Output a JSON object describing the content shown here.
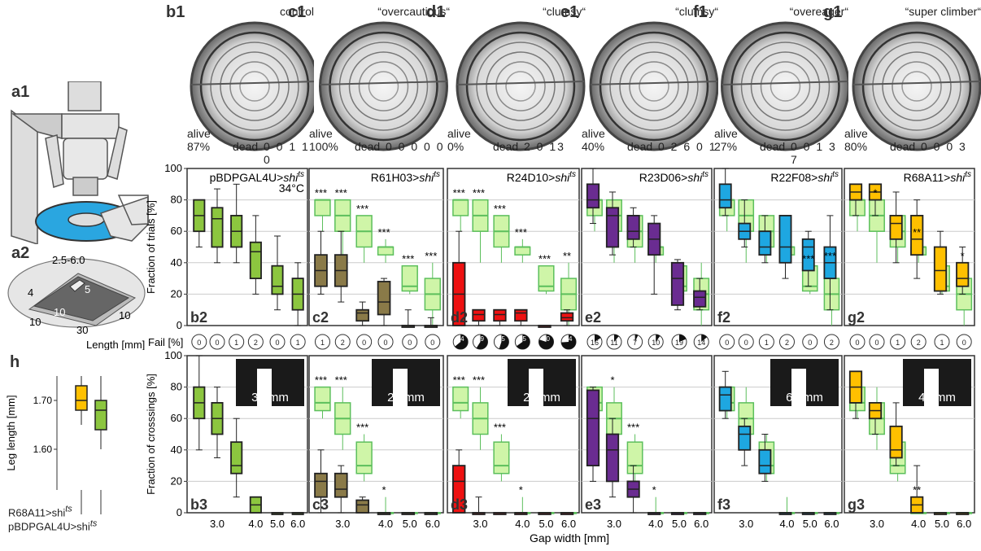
{
  "photos": [
    {
      "id": "b1",
      "tag": "control",
      "alive_label": "alive",
      "alive": "87%",
      "dead_label": "dead",
      "dead": "0 0 1 1 0"
    },
    {
      "id": "c1",
      "tag": "“overcautious“",
      "alive_label": "alive",
      "alive": "100%",
      "dead_label": "dead",
      "dead": "0 0 0 0 0"
    },
    {
      "id": "d1",
      "tag": "“clumsy“",
      "alive_label": "alive",
      "alive": "0%",
      "dead_label": "dead",
      "dead": "2 0 13"
    },
    {
      "id": "e1",
      "tag": "“clumsy“",
      "alive_label": "alive",
      "alive": "40%",
      "dead_label": "dead",
      "dead": "0 2 6 0 1"
    },
    {
      "id": "f1",
      "tag": "“overeager“",
      "alive_label": "alive",
      "alive": "27%",
      "dead_label": "dead",
      "dead": "0 0 1 3 7"
    },
    {
      "id": "g1",
      "tag": "“super climber“",
      "alive_label": "alive",
      "alive": "80%",
      "dead_label": "dead",
      "dead": "0 0 0 3"
    }
  ],
  "left": {
    "a1": "a1",
    "a2": "a2",
    "h": "h",
    "a2_range": "2.5-6.0",
    "a2_dims": [
      "4",
      "5",
      "10",
      "10",
      "30",
      "10"
    ],
    "a2_xlabel": "Length [mm]",
    "h_ylabel": "Leg length [mm]",
    "h_ticks": [
      "1.70",
      "1.60"
    ],
    "h_legend1": "R68A11>shi",
    "h_legend2": "pBDPGAL4U>shi",
    "h_legend_sup": "ts"
  },
  "colors": {
    "green": "#8cc63f",
    "olive": "#8a7a48",
    "red": "#ee1111",
    "purple": "#6a2c91",
    "blue": "#1ea7e1",
    "yellow": "#ffc000",
    "ctrl": "#cff5a8",
    "ctrl_edge": "#5cbf5c"
  },
  "chart_data": [
    {
      "type": "box",
      "title": "Fraction of trials",
      "ylabel": "Fraction of trials [%]",
      "ylim": [
        0,
        100
      ],
      "yticks": [
        0,
        20,
        40,
        60,
        80,
        100
      ],
      "x": [
        2.5,
        3.0,
        3.5,
        4.0,
        5.0,
        6.0
      ],
      "temperature": "34°C",
      "panels": [
        {
          "id": "b2",
          "genotype": "pBDPGAL4U>",
          "sup": "ts",
          "color": "green",
          "boxes": [
            [
              50,
              60,
              70,
              80,
              80
            ],
            [
              40,
              50,
              68,
              75,
              87
            ],
            [
              40,
              50,
              60,
              70,
              90
            ],
            [
              20,
              30,
              47,
              53,
              70
            ],
            [
              10,
              20,
              25,
              38,
              57
            ],
            [
              0,
              10,
              20,
              30,
              40
            ]
          ]
        },
        {
          "id": "c2",
          "genotype": "R61H03>",
          "sup": "ts",
          "color": "olive",
          "control": true,
          "boxes": [
            [
              20,
              25,
              35,
              45,
              60
            ],
            [
              15,
              25,
              35,
              45,
              60
            ],
            [
              0,
              3,
              8,
              10,
              15
            ],
            [
              0,
              7,
              15,
              28,
              30
            ],
            [
              0,
              0,
              0,
              0,
              10
            ],
            [
              0,
              0,
              0,
              0,
              5
            ]
          ],
          "stars": [
            "***",
            "***",
            "***",
            "***",
            "***",
            "***"
          ]
        },
        {
          "id": "d2",
          "genotype": "R24D10>",
          "sup": "ts",
          "color": "red",
          "control": true,
          "boxes": [
            [
              0,
              0,
              20,
              40,
              60
            ],
            [
              0,
              3,
              7,
              10,
              10
            ],
            [
              0,
              3,
              7,
              10,
              10
            ],
            [
              0,
              3,
              8,
              10,
              10
            ],
            [
              0,
              0,
              0,
              0,
              0
            ],
            [
              0,
              3,
              5,
              8,
              10
            ]
          ],
          "stars": [
            "***",
            "***",
            "***",
            "***",
            "***",
            "**"
          ]
        },
        {
          "id": "e2",
          "genotype": "R23D06>",
          "sup": "ts",
          "color": "purple",
          "control": true,
          "boxes": [
            [
              65,
              75,
              80,
              90,
              100
            ],
            [
              45,
              50,
              70,
              75,
              85
            ],
            [
              50,
              55,
              60,
              70,
              75
            ],
            [
              20,
              45,
              55,
              65,
              70
            ],
            [
              10,
              13,
              30,
              40,
              42
            ],
            [
              10,
              12,
              18,
              22,
              30
            ]
          ],
          "stars": [
            "",
            "",
            "",
            "",
            "",
            ""
          ]
        },
        {
          "id": "f2",
          "genotype": "R22F08>",
          "sup": "ts",
          "color": "blue",
          "control": true,
          "boxes": [
            [
              70,
              75,
              80,
              90,
              100
            ],
            [
              50,
              55,
              60,
              65,
              80
            ],
            [
              40,
              45,
              50,
              60,
              70
            ],
            [
              30,
              40,
              50,
              70,
              70
            ],
            [
              25,
              35,
              50,
              55,
              60
            ],
            [
              10,
              30,
              40,
              50,
              70
            ]
          ],
          "stars": [
            "",
            "",
            "",
            "",
            "***",
            "***"
          ]
        },
        {
          "id": "g2",
          "genotype": "R68A11>",
          "sup": "ts",
          "color": "yellow",
          "control": true,
          "boxes": [
            [
              70,
              80,
              85,
              90,
              90
            ],
            [
              70,
              80,
              85,
              90,
              90
            ],
            [
              40,
              55,
              65,
              70,
              85
            ],
            [
              30,
              45,
              55,
              70,
              80
            ],
            [
              20,
              22,
              35,
              50,
              60
            ],
            [
              20,
              25,
              30,
              40,
              50
            ]
          ],
          "stars": [
            "",
            "*",
            "",
            "**",
            "",
            "*"
          ]
        }
      ],
      "control_boxes": [
        [
          60,
          70,
          80,
          80,
          80
        ],
        [
          40,
          60,
          70,
          80,
          80
        ],
        [
          40,
          50,
          60,
          70,
          70
        ],
        [
          40,
          45,
          50,
          50,
          55
        ],
        [
          20,
          22,
          25,
          38,
          38
        ],
        [
          0,
          10,
          20,
          30,
          40
        ]
      ]
    },
    {
      "type": "pie_row",
      "label": "Fail [%]",
      "panels": [
        {
          "id": "b",
          "values": [
            "0",
            "0",
            "1",
            "2",
            "0",
            "1"
          ]
        },
        {
          "id": "c",
          "values": [
            "1",
            "2",
            "0",
            "0",
            "0",
            "0"
          ]
        },
        {
          "id": "d",
          "values": [
            "64",
            "59",
            "55",
            "65",
            "80",
            "74"
          ]
        },
        {
          "id": "e",
          "values": [
            "16",
            "11",
            "7",
            "10",
            "19",
            "14"
          ]
        },
        {
          "id": "f",
          "values": [
            "0",
            "0",
            "1",
            "2",
            "0",
            "2"
          ]
        },
        {
          "id": "g",
          "values": [
            "0",
            "0",
            "1",
            "2",
            "1",
            "0"
          ]
        }
      ]
    },
    {
      "type": "box",
      "title": "Fraction of crossings",
      "ylabel": "Fraction of crosssings [%]",
      "xlabel": "Gap width [mm]",
      "ylim": [
        0,
        100
      ],
      "yticks": [
        0,
        20,
        40,
        60,
        80,
        100
      ],
      "xtick_labels": [
        "3.0",
        "4.0",
        "5.0",
        "6.0"
      ],
      "x": [
        2.5,
        3.0,
        3.5,
        4.0,
        5.0,
        6.0
      ],
      "panels": [
        {
          "id": "b3",
          "color": "green",
          "inset": "3.5mm",
          "boxes": [
            [
              40,
              60,
              70,
              80,
              100
            ],
            [
              35,
              50,
              60,
              70,
              80
            ],
            [
              10,
              25,
              30,
              45,
              60
            ],
            [
              0,
              0,
              5,
              10,
              10
            ],
            [
              0,
              0,
              0,
              0,
              0
            ],
            [
              0,
              0,
              0,
              0,
              0
            ]
          ]
        },
        {
          "id": "c3",
          "color": "olive",
          "inset": "2.5mm",
          "control": true,
          "boxes": [
            [
              0,
              10,
              20,
              25,
              40
            ],
            [
              0,
              10,
              15,
              25,
              30
            ],
            [
              0,
              0,
              5,
              8,
              10
            ],
            [
              0,
              0,
              0,
              0,
              0
            ],
            [
              0,
              0,
              0,
              0,
              0
            ],
            [
              0,
              0,
              0,
              0,
              0
            ]
          ],
          "stars": [
            "***",
            "***",
            "***",
            "*",
            "",
            ""
          ]
        },
        {
          "id": "d3",
          "color": "red",
          "inset": "2.5mm",
          "control": true,
          "boxes": [
            [
              0,
              0,
              20,
              30,
              40
            ],
            [
              0,
              0,
              0,
              0,
              10
            ],
            [
              0,
              0,
              0,
              0,
              0
            ],
            [
              0,
              0,
              0,
              0,
              0
            ],
            [
              0,
              0,
              0,
              0,
              0
            ],
            [
              0,
              0,
              0,
              0,
              0
            ]
          ],
          "stars": [
            "***",
            "***",
            "***",
            "*",
            "",
            ""
          ]
        },
        {
          "id": "e3",
          "color": "purple",
          "inset": "",
          "control": true,
          "boxes": [
            [
              20,
              30,
              60,
              78,
              80
            ],
            [
              10,
              20,
              40,
              50,
              60
            ],
            [
              0,
              10,
              15,
              20,
              30
            ],
            [
              0,
              0,
              0,
              0,
              0
            ],
            [
              0,
              0,
              0,
              0,
              0
            ],
            [
              0,
              0,
              0,
              0,
              0
            ]
          ],
          "stars": [
            "",
            "*",
            "***",
            "*",
            "",
            ""
          ]
        },
        {
          "id": "f3",
          "color": "blue",
          "inset": "6.0mm",
          "control": true,
          "boxes": [
            [
              60,
              65,
              75,
              80,
              90
            ],
            [
              30,
              40,
              50,
              55,
              60
            ],
            [
              20,
              25,
              30,
              40,
              50
            ],
            [
              0,
              0,
              0,
              0,
              0
            ],
            [
              0,
              0,
              0,
              0,
              0
            ],
            [
              0,
              0,
              0,
              0,
              0
            ]
          ],
          "stars": [
            "",
            "",
            "",
            "",
            "",
            ""
          ]
        },
        {
          "id": "g3",
          "color": "yellow",
          "inset": "4.0mm",
          "control": true,
          "boxes": [
            [
              60,
              70,
              80,
              90,
              90
            ],
            [
              50,
              60,
              65,
              70,
              70
            ],
            [
              30,
              35,
              40,
              55,
              70
            ],
            [
              0,
              0,
              5,
              10,
              30
            ],
            [
              0,
              0,
              0,
              0,
              0
            ],
            [
              0,
              0,
              0,
              0,
              0
            ]
          ],
          "stars": [
            "",
            "",
            "",
            "**",
            "",
            ""
          ]
        }
      ],
      "control_boxes": [
        [
          60,
          65,
          70,
          80,
          80
        ],
        [
          40,
          50,
          60,
          70,
          80
        ],
        [
          20,
          25,
          30,
          45,
          50
        ],
        [
          0,
          0,
          0,
          0,
          10
        ],
        [
          0,
          0,
          0,
          0,
          0
        ],
        [
          0,
          0,
          0,
          0,
          0
        ]
      ]
    }
  ]
}
